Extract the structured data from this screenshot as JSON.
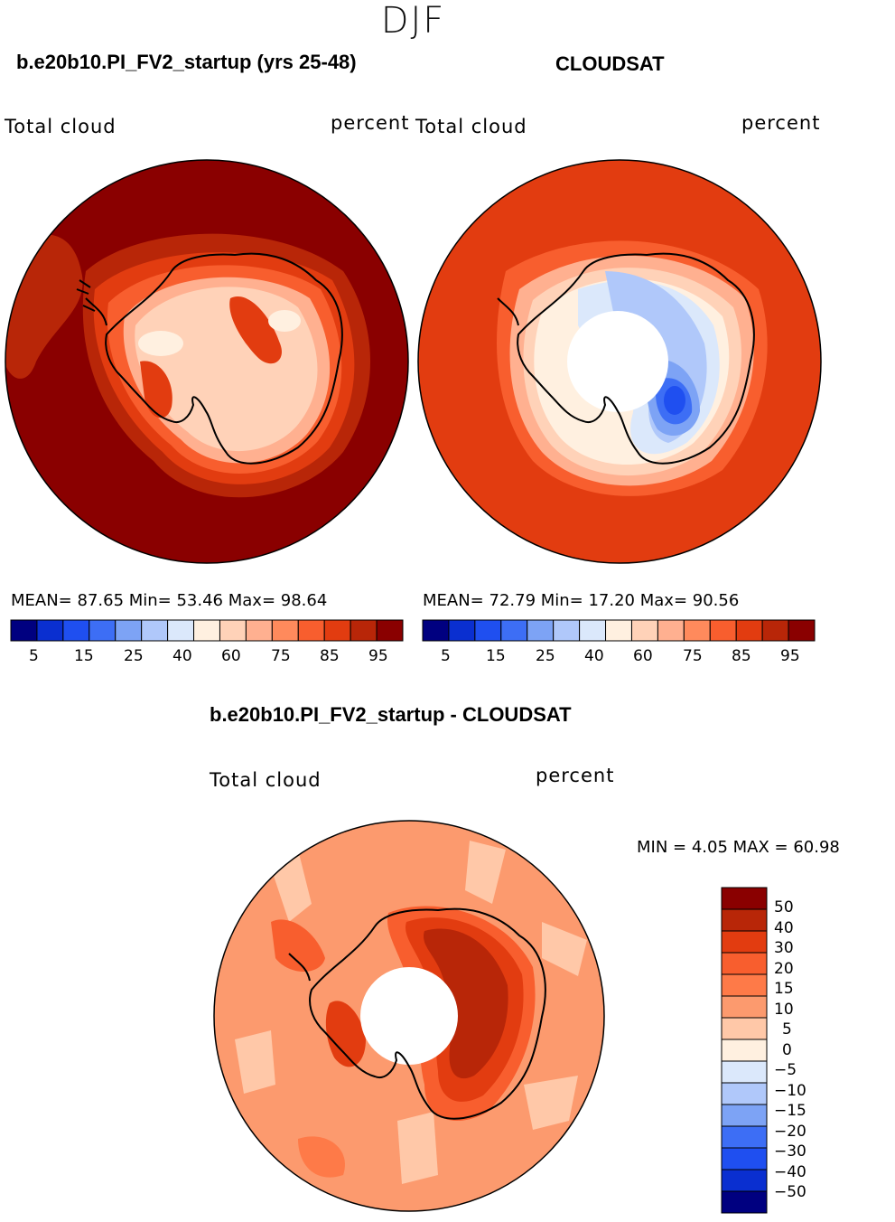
{
  "season": "DJF",
  "panels": [
    {
      "title": "b.e20b10.PI_FV2_startup (yrs 25-48)",
      "left_label": "Total cloud",
      "right_label": "percent",
      "stats": "MEAN=  87.65  Min=  53.46  Max=  98.64",
      "pole_hole": false,
      "rings": [
        10,
        9,
        8,
        7,
        6
      ],
      "colorbar_ticks": [
        "5",
        "15",
        "25",
        "40",
        "60",
        "75",
        "85",
        "95"
      ]
    },
    {
      "title": "CLOUDSAT",
      "left_label": "Total cloud",
      "right_label": "percent",
      "stats": "MEAN=  72.79  Min=  17.20  Max=  90.56",
      "pole_hole": true,
      "rings": [
        8,
        9,
        8,
        7,
        6
      ],
      "colorbar_ticks": [
        "5",
        "15",
        "25",
        "40",
        "60",
        "75",
        "85",
        "95"
      ]
    },
    {
      "title": "b.e20b10.PI_FV2_startup - CLOUDSAT",
      "left_label": "Total cloud",
      "right_label": "percent",
      "stats": "MIN =    4.05  MAX =   60.98",
      "pole_hole": true,
      "colorbar_ticks": [
        "50",
        "40",
        "30",
        "20",
        "15",
        "10",
        "5",
        "0",
        "−5",
        "−10",
        "−15",
        "−20",
        "−30",
        "−40",
        "−50"
      ]
    }
  ],
  "colors": {
    "abs_scale": [
      "#000080",
      "#0a2fd0",
      "#1f4ff0",
      "#3d6ef5",
      "#7da3f5",
      "#b0c8fa",
      "#dbe8fb",
      "#fff0e0",
      "#ffd2b8",
      "#ffb090",
      "#ff8a5c",
      "#f85e2e",
      "#e23c10",
      "#b82608",
      "#8a0000"
    ],
    "diff_scale_top_to_bottom": [
      "#8a0000",
      "#b82608",
      "#e23c10",
      "#f85e2e",
      "#fe7a48",
      "#fc9a6e",
      "#ffc8a8",
      "#fff0e0",
      "#dbe8fb",
      "#b0c8fa",
      "#7da3f5",
      "#3d6ef5",
      "#1f4ff0",
      "#0a2fd0",
      "#000080"
    ]
  }
}
